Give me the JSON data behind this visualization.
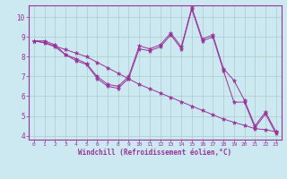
{
  "bg_color": "#cce8f0",
  "line_color": "#993399",
  "axis_color": "#993399",
  "grid_color": "#aacccc",
  "xlabel": "Windchill (Refroidissement éolien,°C)",
  "xlim": [
    -0.5,
    23.5
  ],
  "ylim": [
    3.8,
    10.6
  ],
  "yticks": [
    4,
    5,
    6,
    7,
    8,
    9,
    10
  ],
  "xticks": [
    0,
    1,
    2,
    3,
    4,
    5,
    6,
    7,
    8,
    9,
    10,
    11,
    12,
    13,
    14,
    15,
    16,
    17,
    18,
    19,
    20,
    21,
    22,
    23
  ],
  "line1": [
    8.8,
    8.8,
    8.6,
    8.1,
    7.9,
    7.65,
    7.0,
    6.6,
    6.5,
    7.0,
    8.55,
    8.4,
    8.6,
    9.2,
    8.5,
    10.5,
    8.9,
    9.1,
    7.4,
    6.8,
    5.8,
    4.5,
    5.2,
    4.2
  ],
  "line2": [
    8.8,
    8.7,
    8.5,
    8.1,
    7.8,
    7.6,
    6.9,
    6.5,
    6.4,
    6.9,
    8.4,
    8.3,
    8.5,
    9.1,
    8.4,
    10.4,
    8.8,
    9.0,
    7.3,
    5.7,
    5.7,
    4.4,
    5.1,
    4.1
  ],
  "line3": [
    8.8,
    8.72,
    8.54,
    8.36,
    8.18,
    8.0,
    7.72,
    7.44,
    7.16,
    6.88,
    6.6,
    6.38,
    6.16,
    5.94,
    5.72,
    5.5,
    5.28,
    5.06,
    4.84,
    4.68,
    4.52,
    4.36,
    4.3,
    4.2
  ]
}
